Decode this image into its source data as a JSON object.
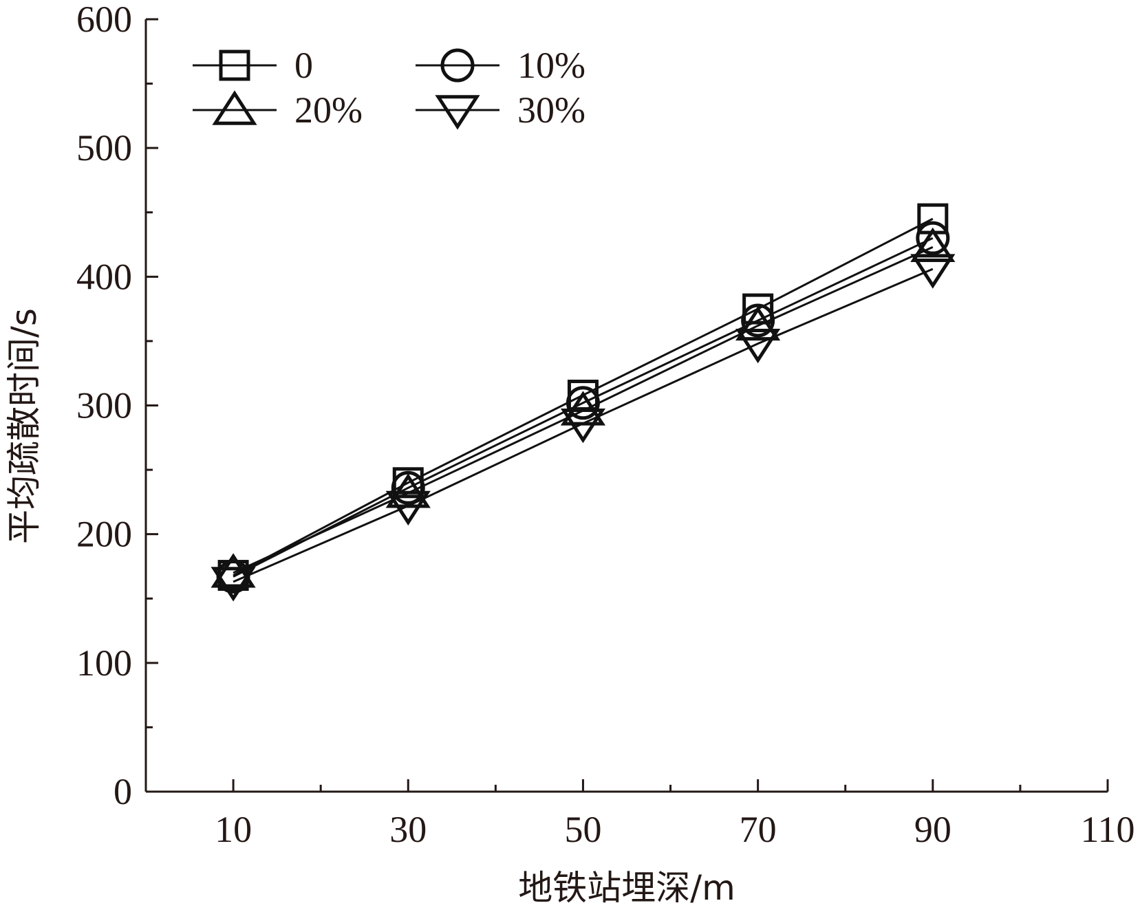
{
  "chart_data": {
    "type": "line",
    "title": "",
    "xlabel": "地铁站埋深/m",
    "ylabel": "平均疏散时间/s",
    "xlim": [
      0,
      110
    ],
    "ylim": [
      0,
      600
    ],
    "x_ticks": [
      10,
      30,
      50,
      70,
      90,
      110
    ],
    "y_ticks": [
      0,
      100,
      200,
      300,
      400,
      500,
      600
    ],
    "x_minor_ticks": [
      20,
      40,
      60,
      80,
      100
    ],
    "y_minor_ticks": [
      50,
      150,
      250,
      350,
      450,
      550
    ],
    "x_tick_labels": [
      "10",
      "30",
      "50",
      "70",
      "90",
      "110"
    ],
    "y_tick_labels": [
      "0",
      "100",
      "200",
      "300",
      "400",
      "500",
      "600"
    ],
    "grid": false,
    "legend_position": "top-left",
    "x": [
      10,
      30,
      50,
      70,
      90
    ],
    "series": [
      {
        "name": "0",
        "marker": "square",
        "values": [
          168,
          240,
          308,
          375,
          445
        ]
      },
      {
        "name": "10%",
        "marker": "circle",
        "values": [
          167,
          236,
          302,
          366,
          430
        ]
      },
      {
        "name": "20%",
        "marker": "triangle-up",
        "values": [
          170,
          232,
          296,
          362,
          423
        ]
      },
      {
        "name": "30%",
        "marker": "triangle-down",
        "values": [
          163,
          222,
          286,
          348,
          406
        ]
      }
    ]
  }
}
